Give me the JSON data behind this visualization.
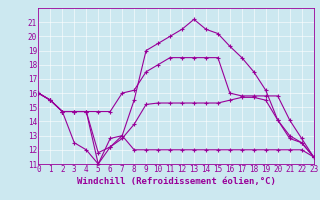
{
  "xlabel": "Windchill (Refroidissement éolien,°C)",
  "background_color": "#cce8f0",
  "line_color": "#990099",
  "ylim": [
    11,
    22
  ],
  "xlim": [
    0,
    23
  ],
  "x": [
    0,
    1,
    2,
    3,
    4,
    5,
    6,
    7,
    8,
    9,
    10,
    11,
    12,
    13,
    14,
    15,
    16,
    17,
    18,
    19,
    20,
    21,
    22,
    23
  ],
  "series": [
    [
      16.0,
      15.5,
      14.7,
      14.7,
      14.7,
      14.7,
      14.7,
      16.0,
      16.2,
      17.5,
      18.0,
      18.5,
      18.5,
      18.5,
      18.5,
      18.5,
      16.0,
      15.8,
      15.8,
      15.8,
      15.8,
      14.1,
      12.8,
      11.5
    ],
    [
      16.0,
      15.5,
      14.7,
      14.7,
      14.7,
      11.0,
      12.8,
      13.0,
      15.5,
      19.0,
      19.5,
      20.0,
      20.5,
      21.2,
      20.5,
      20.2,
      19.3,
      18.5,
      17.5,
      16.2,
      14.1,
      13.0,
      12.5,
      11.5
    ],
    [
      16.0,
      15.5,
      14.7,
      14.7,
      14.7,
      11.8,
      12.2,
      12.8,
      13.8,
      15.2,
      15.3,
      15.3,
      15.3,
      15.3,
      15.3,
      15.3,
      15.5,
      15.7,
      15.7,
      15.5,
      14.1,
      12.8,
      12.5,
      11.5
    ],
    [
      16.0,
      15.5,
      14.7,
      12.5,
      12.0,
      11.0,
      12.2,
      13.0,
      12.0,
      12.0,
      12.0,
      12.0,
      12.0,
      12.0,
      12.0,
      12.0,
      12.0,
      12.0,
      12.0,
      12.0,
      12.0,
      12.0,
      12.0,
      11.5
    ]
  ],
  "markers": [
    "+",
    "+",
    "+",
    "+"
  ],
  "tick_label_fontsize": 5.5,
  "xlabel_fontsize": 6.5,
  "grid_color": "#b0d8e8",
  "spine_color": "#888888"
}
